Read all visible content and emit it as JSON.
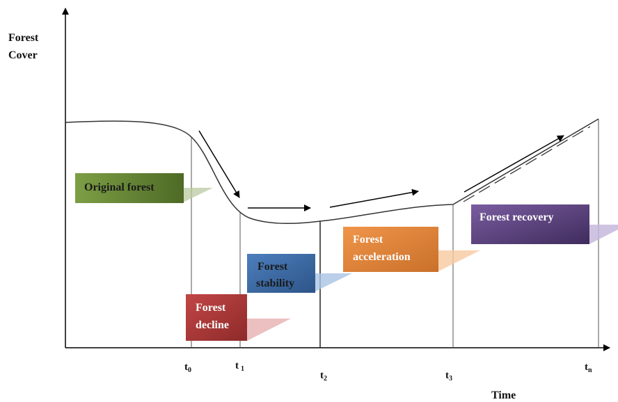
{
  "y_axis": {
    "line1": "Forest",
    "line2": "Cover"
  },
  "x_axis": {
    "label": "Time"
  },
  "ticks": [
    {
      "label": "t",
      "sub": "0"
    },
    {
      "label": "t",
      "sub": "1"
    },
    {
      "label": "t",
      "sub": "2"
    },
    {
      "label": "t",
      "sub": "3"
    },
    {
      "label": "t",
      "sub": "n"
    }
  ],
  "stages": [
    {
      "line1": "Original forest",
      "line2": "",
      "color": "#6f8f3a"
    },
    {
      "line1": "Forest",
      "line2": "decline",
      "color": "#b83a3a"
    },
    {
      "line1": "Forest",
      "line2": "stability",
      "color": "#3f6fa8"
    },
    {
      "line1": "Forest",
      "line2": "acceleration",
      "color": "#e0883a"
    },
    {
      "line1": "Forest recovery",
      "line2": "",
      "color": "#6a4c8c"
    }
  ]
}
